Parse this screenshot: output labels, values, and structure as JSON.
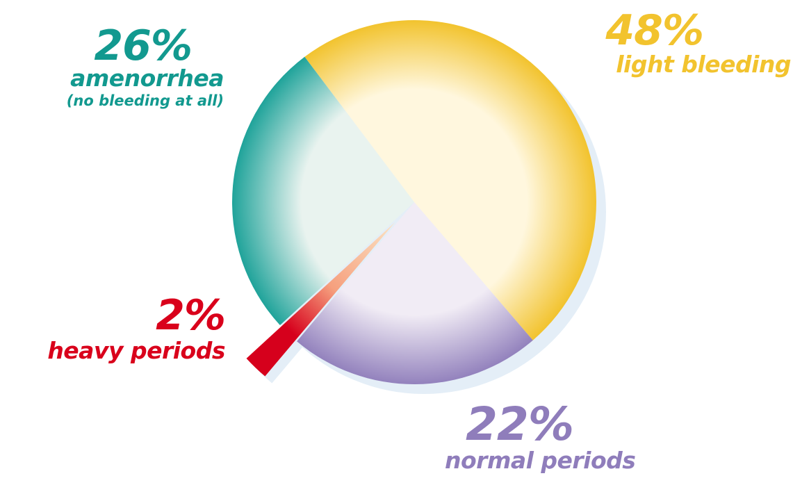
{
  "chart_data": {
    "type": "pie",
    "slices": [
      {
        "key": "light",
        "label": "light bleeding",
        "pct_label": "48%",
        "value": 48,
        "color": "#F2C32E",
        "highlight": "#FFF7DE"
      },
      {
        "key": "normal",
        "label": "normal periods",
        "pct_label": "22%",
        "value": 22,
        "color": "#9382BD",
        "highlight": "#F1ECF5"
      },
      {
        "key": "heavy",
        "label": "heavy periods",
        "pct_label": "2%",
        "value": 2,
        "color": "#D6001C",
        "highlight": "#F6A07E",
        "exploded": true
      },
      {
        "key": "amen",
        "label": "amenorrhea",
        "sublabel": "(no bleeding at all)",
        "pct_label": "26%",
        "value": 26,
        "color": "#1FA39A",
        "highlight": "#E9F3EF"
      }
    ],
    "label_colors": {
      "light": "#F2C32E",
      "normal": "#8F7DBB",
      "heavy": "#D9001B",
      "amen": "#12998F"
    }
  }
}
